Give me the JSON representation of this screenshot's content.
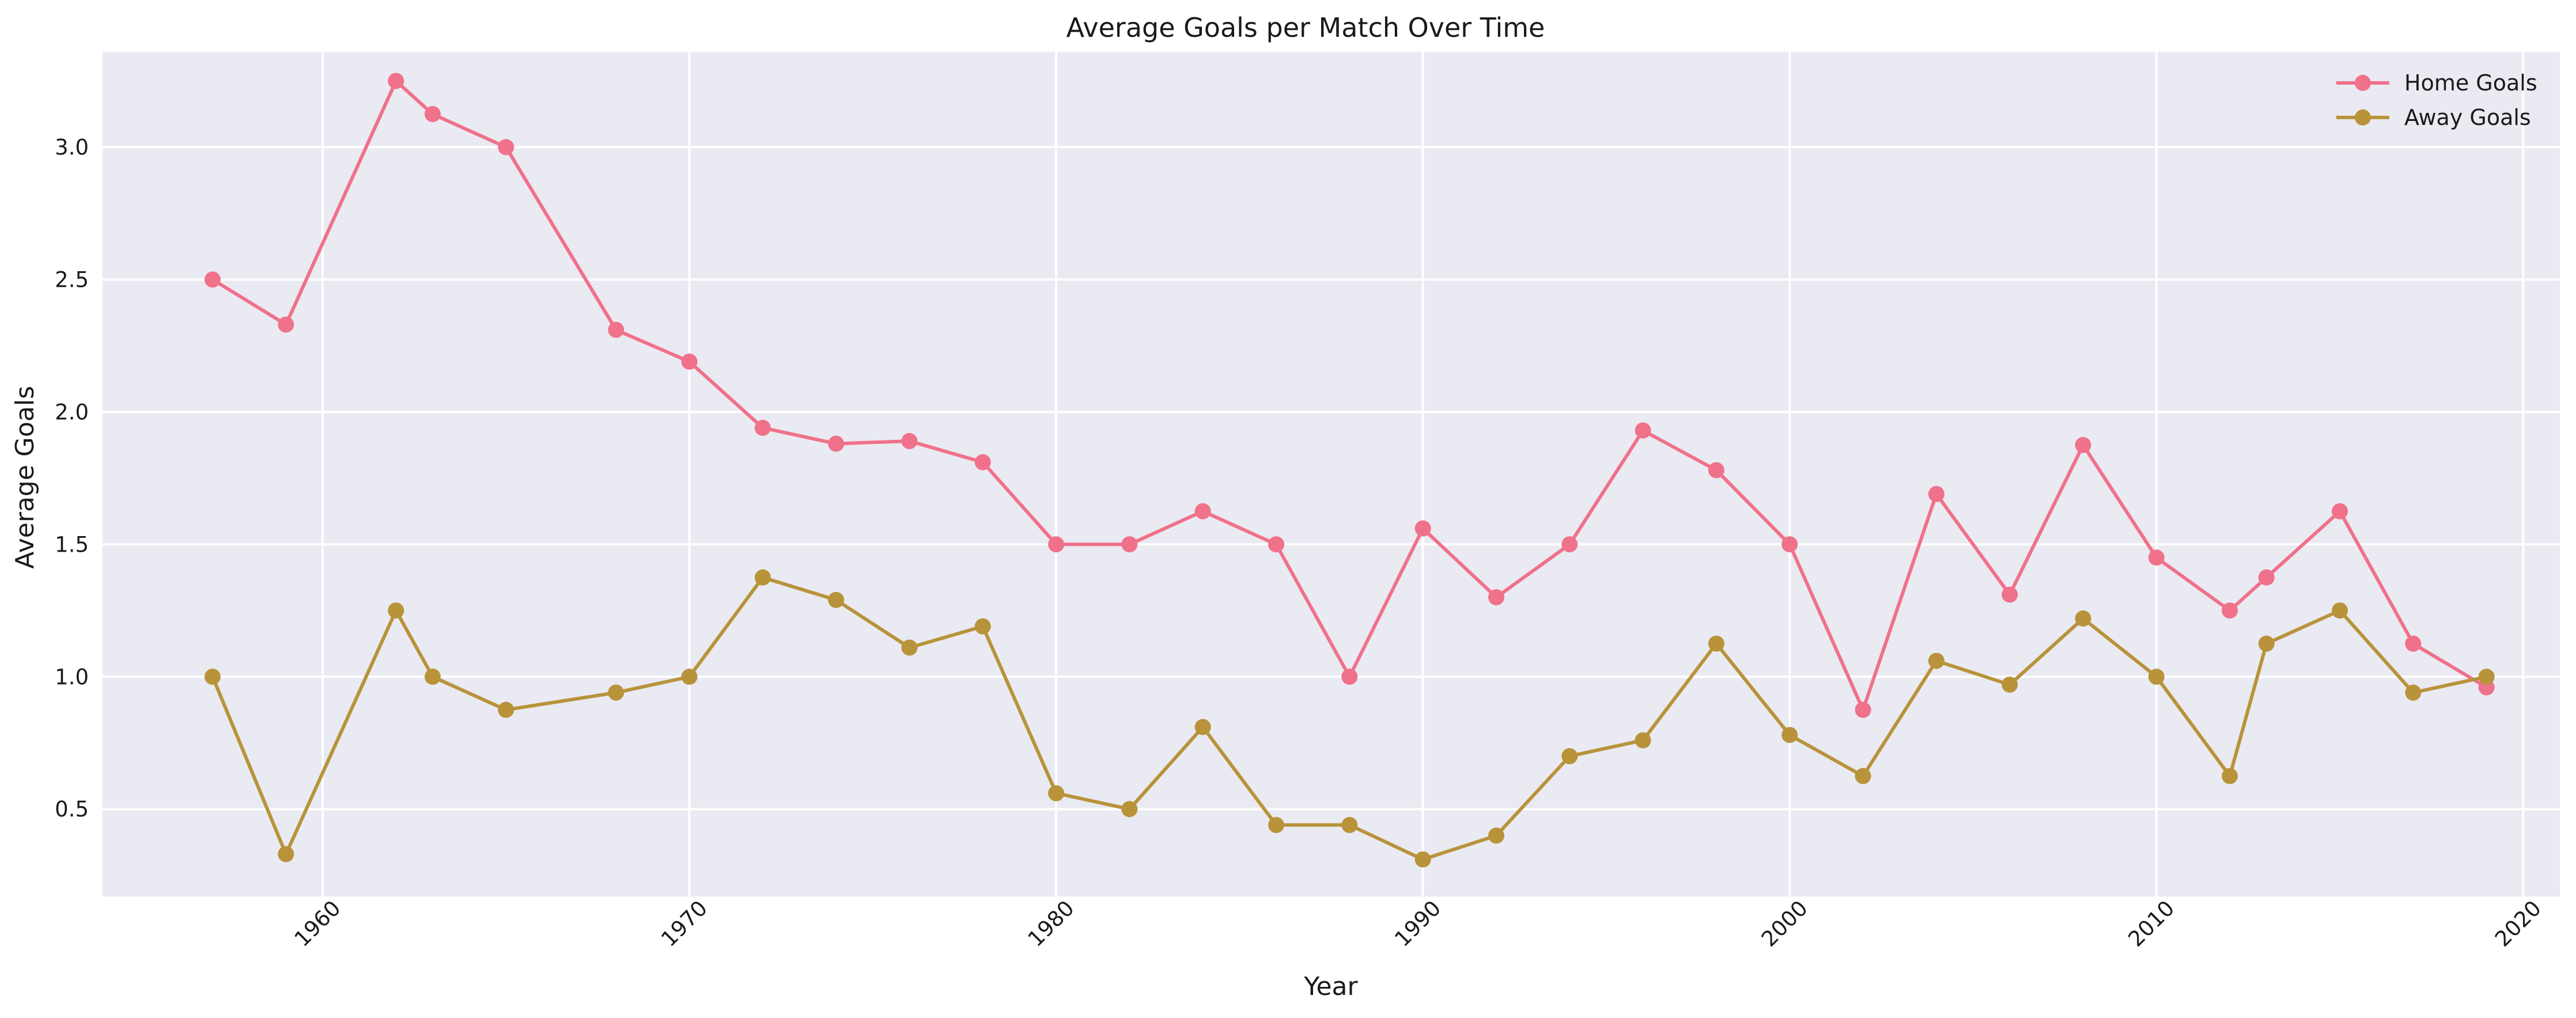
{
  "chart_data": {
    "type": "line",
    "title": "Average Goals per Match Over Time",
    "xlabel": "Year",
    "ylabel": "Average Goals",
    "xlim": [
      1954,
      2021
    ],
    "ylim": [
      0.17,
      3.36
    ],
    "xticks": [
      1960,
      1970,
      1980,
      1990,
      2000,
      2010,
      2020
    ],
    "yticks": [
      0.5,
      1.0,
      1.5,
      2.0,
      2.5,
      3.0
    ],
    "xtick_labels": [
      "1960",
      "1970",
      "1980",
      "1990",
      "2000",
      "2010",
      "2020"
    ],
    "ytick_labels": [
      "0.5",
      "1.0",
      "1.5",
      "2.0",
      "2.5",
      "3.0"
    ],
    "grid": true,
    "legend_position": "top-right",
    "x": [
      1957,
      1959,
      1962,
      1963,
      1965,
      1968,
      1970,
      1972,
      1974,
      1976,
      1978,
      1980,
      1982,
      1984,
      1986,
      1988,
      1990,
      1992,
      1994,
      1996,
      1998,
      2000,
      2002,
      2004,
      2006,
      2008,
      2010,
      2012,
      2013,
      2015,
      2017,
      2019
    ],
    "series": [
      {
        "name": "Home Goals",
        "color": "#f0718a",
        "values": [
          2.5,
          2.33,
          3.25,
          3.125,
          3.0,
          2.31,
          2.19,
          1.94,
          1.88,
          1.89,
          1.81,
          1.5,
          1.5,
          1.625,
          1.5,
          1.0,
          1.56,
          1.3,
          1.5,
          1.93,
          1.78,
          1.5,
          0.875,
          1.69,
          1.31,
          1.875,
          1.45,
          1.25,
          1.375,
          1.625,
          1.125,
          0.96
        ]
      },
      {
        "name": "Away Goals",
        "color": "#b8933a",
        "values": [
          1.0,
          0.33,
          1.25,
          1.0,
          0.875,
          0.94,
          1.0,
          1.375,
          1.29,
          1.11,
          1.19,
          0.56,
          0.5,
          0.81,
          0.44,
          0.44,
          0.31,
          0.4,
          0.7,
          0.76,
          1.125,
          0.78,
          0.625,
          1.06,
          0.97,
          1.22,
          1.0,
          0.625,
          1.125,
          1.25,
          0.94,
          1.0
        ]
      }
    ],
    "style": {
      "plot_background": "#eaeaf2",
      "grid_color": "#ffffff"
    }
  }
}
